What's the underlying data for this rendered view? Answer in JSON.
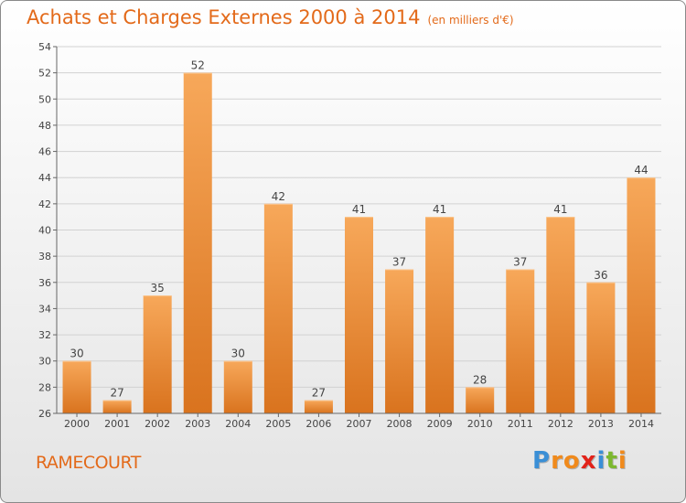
{
  "title": "Achats et Charges Externes 2000 à 2014",
  "unit_note": "(en milliers d'€)",
  "commune": "RAMECOURT",
  "brand": {
    "letters": [
      "P",
      "r",
      "o",
      "x",
      "i",
      "t",
      "i"
    ],
    "colors": [
      "#3a8fd6",
      "#f08a1c",
      "#f08a1c",
      "#e2231a",
      "#3a8fd6",
      "#7cb82f",
      "#f08a1c"
    ]
  },
  "colors": {
    "bar_light": "#f7a85a",
    "bar_dark": "#d9731e",
    "title": "#e36a1a"
  },
  "chart_data": {
    "type": "bar",
    "title": "Achats et Charges Externes 2000 à 2014",
    "categories": [
      "2000",
      "2001",
      "2002",
      "2003",
      "2004",
      "2005",
      "2006",
      "2007",
      "2008",
      "2009",
      "2010",
      "2011",
      "2012",
      "2013",
      "2014"
    ],
    "values": [
      30,
      27,
      35,
      52,
      30,
      42,
      27,
      41,
      37,
      41,
      28,
      37,
      41,
      36,
      44
    ],
    "ylim": [
      26,
      54
    ],
    "yticks": [
      "26",
      "28",
      "30",
      "32",
      "34",
      "36",
      "38",
      "40",
      "42",
      "44",
      "46",
      "48",
      "50",
      "52",
      "54"
    ],
    "xlabel": "",
    "ylabel": "",
    "grid": true
  }
}
